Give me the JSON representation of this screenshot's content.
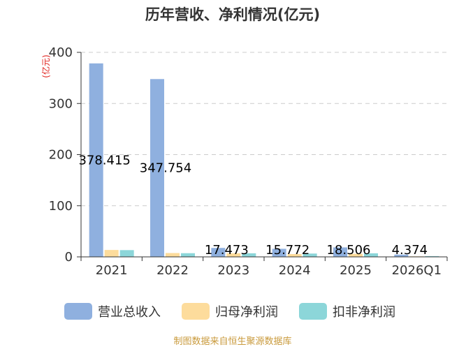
{
  "chart_data": {
    "type": "bar",
    "title": "历年营收、净利情况(亿元)",
    "ylabel": "(亿元)",
    "ylim": [
      0,
      400
    ],
    "yticks": [
      0,
      100,
      200,
      300,
      400
    ],
    "categories": [
      "2021",
      "2022",
      "2023",
      "2024",
      "2025",
      "2026Q1"
    ],
    "series": [
      {
        "name": "营业总收入",
        "color": "#8fb0df",
        "values": [
          378.415,
          347.754,
          17.473,
          15.772,
          18.506,
          4.374
        ]
      },
      {
        "name": "归母净利润",
        "color": "#fddc9c",
        "values": [
          13.5,
          7.5,
          7.0,
          5.5,
          6.0,
          1.0
        ]
      },
      {
        "name": "扣非净利润",
        "color": "#8cd6d9",
        "values": [
          13.2,
          7.2,
          7.0,
          6.5,
          7.0,
          1.5
        ]
      }
    ],
    "data_labels": [
      "378.415",
      "347.754",
      "17.473",
      "15.772",
      "18.506",
      "4.374"
    ],
    "grid": true,
    "legend_position": "bottom"
  },
  "source_text": "制图数据来自恒生聚源数据库"
}
